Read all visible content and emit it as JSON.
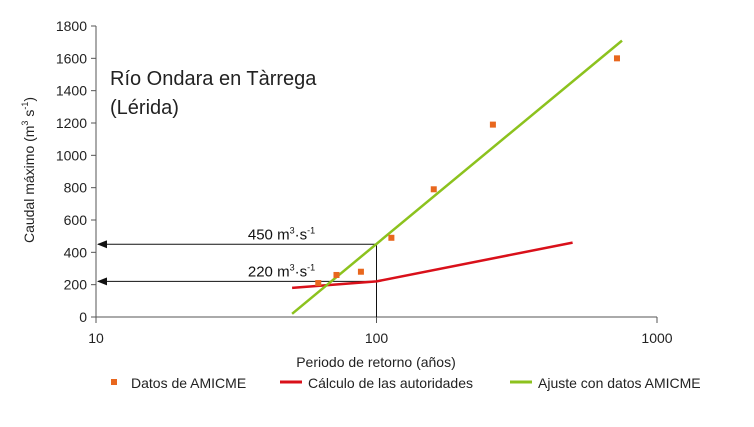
{
  "chart_data": {
    "type": "scatter",
    "title_lines": [
      "Río Ondara en Tàrrega",
      "(Lérida)"
    ],
    "xlabel": "Periodo de retorno (años)",
    "ylabel": {
      "base": "Caudal máximo (m",
      "sup1": "3",
      "mid": " s",
      "sup2": "-1",
      "end": ")"
    },
    "x_scale": "log",
    "xlim": [
      10,
      1000
    ],
    "ylim": [
      0,
      1800
    ],
    "x_ticks": [
      10,
      100,
      1000
    ],
    "x_tick_labels": [
      "10",
      "100",
      "1000"
    ],
    "y_ticks": [
      0,
      200,
      400,
      600,
      800,
      1000,
      1200,
      1400,
      1600,
      1800
    ],
    "y_tick_labels": [
      "0",
      "200",
      "400",
      "600",
      "800",
      "1000",
      "1200",
      "1400",
      "1600",
      "1800"
    ],
    "grid": false,
    "series": [
      {
        "name": "Datos de AMICME",
        "kind": "scatter",
        "color": "#e8671e",
        "x": [
          62,
          72,
          88,
          113,
          160,
          260,
          720
        ],
        "y": [
          210,
          260,
          280,
          490,
          790,
          1190,
          1600
        ]
      },
      {
        "name": "Cálculo de las autoridades",
        "kind": "line",
        "color": "#d9101a",
        "x": [
          50,
          100,
          500
        ],
        "y": [
          180,
          220,
          460
        ]
      },
      {
        "name": "Ajuste con datos AMICME",
        "kind": "line",
        "color": "#8cc21e",
        "x": [
          50,
          750
        ],
        "y": [
          20,
          1710
        ]
      }
    ],
    "annotations": [
      {
        "value": "450",
        "unit": " m",
        "sup1": "3",
        "mid": "·s",
        "sup2": "-1",
        "x": 100,
        "y": 450
      },
      {
        "value": "220",
        "unit": " m",
        "sup1": "3",
        "mid": "·s",
        "sup2": "-1",
        "x": 100,
        "y": 220
      }
    ],
    "legend_placement": "bottom"
  }
}
